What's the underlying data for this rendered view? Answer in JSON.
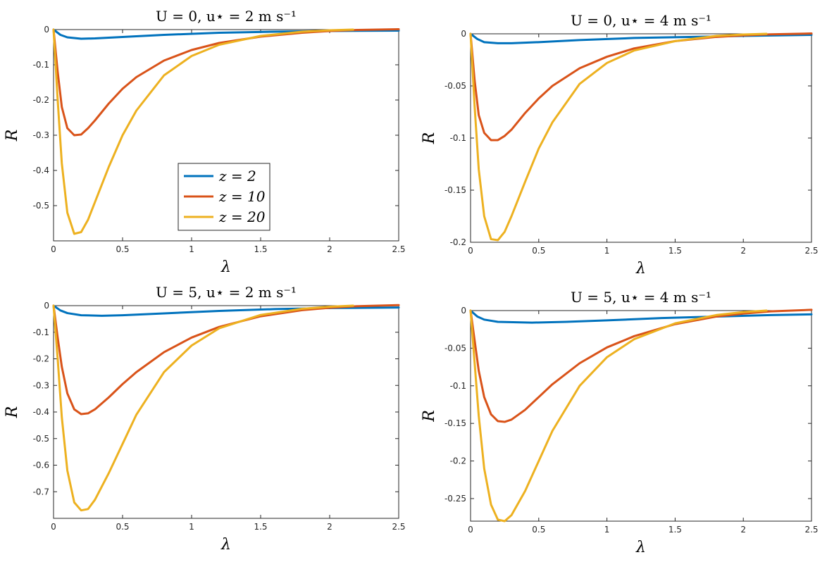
{
  "colors": {
    "z2": "#0072BD",
    "z10": "#D95319",
    "z20": "#EDB120",
    "axis": "#262626"
  },
  "chart_data": [
    {
      "type": "line",
      "title": "U = 0, u⋆ = 2 m s⁻¹",
      "xlabel": "λ",
      "ylabel": "R",
      "xlim": [
        0,
        2.5
      ],
      "ylim": [
        -0.6,
        0
      ],
      "xticks": [
        "0",
        "0.5",
        "1",
        "1.5",
        "2",
        "2.5"
      ],
      "yticks": [
        "0",
        "-0.1",
        "-0.2",
        "-0.3",
        "-0.4",
        "-0.5"
      ],
      "ytick_values": [
        0,
        -0.1,
        -0.2,
        -0.3,
        -0.4,
        -0.5
      ],
      "legend": "center-left",
      "series": [
        {
          "name": "z = 2",
          "x": [
            0,
            0.05,
            0.1,
            0.2,
            0.3,
            0.5,
            0.8,
            1.2,
            1.6,
            2.0,
            2.5
          ],
          "values": [
            0,
            -0.015,
            -0.022,
            -0.026,
            -0.025,
            -0.021,
            -0.015,
            -0.009,
            -0.006,
            -0.004,
            -0.003
          ]
        },
        {
          "name": "z = 10",
          "x": [
            0,
            0.03,
            0.06,
            0.1,
            0.15,
            0.2,
            0.25,
            0.3,
            0.4,
            0.5,
            0.6,
            0.8,
            1.0,
            1.2,
            1.5,
            1.8,
            2.0,
            2.2,
            2.5
          ],
          "values": [
            0,
            -0.12,
            -0.22,
            -0.28,
            -0.3,
            -0.298,
            -0.28,
            -0.258,
            -0.21,
            -0.168,
            -0.135,
            -0.088,
            -0.058,
            -0.038,
            -0.02,
            -0.009,
            -0.004,
            -0.001,
            0.001
          ]
        },
        {
          "name": "z = 20",
          "x": [
            0,
            0.03,
            0.06,
            0.1,
            0.15,
            0.2,
            0.25,
            0.3,
            0.4,
            0.5,
            0.6,
            0.8,
            1.0,
            1.2,
            1.5,
            1.8,
            2.0,
            2.17
          ],
          "values": [
            0,
            -0.2,
            -0.38,
            -0.52,
            -0.58,
            -0.575,
            -0.54,
            -0.49,
            -0.39,
            -0.3,
            -0.23,
            -0.13,
            -0.075,
            -0.043,
            -0.018,
            -0.006,
            -0.002,
            0
          ]
        }
      ]
    },
    {
      "type": "line",
      "title": "U = 0, u⋆ = 4 m s⁻¹",
      "xlabel": "λ",
      "ylabel": "R",
      "xlim": [
        0,
        2.5
      ],
      "ylim": [
        -0.2,
        0
      ],
      "xticks": [
        "0",
        "0.5",
        "1",
        "1.5",
        "2",
        "2.5"
      ],
      "yticks": [
        "0",
        "-0.05",
        "-0.1",
        "-0.15",
        "-0.2"
      ],
      "ytick_values": [
        0,
        -0.05,
        -0.1,
        -0.15,
        -0.2
      ],
      "series": [
        {
          "name": "z = 2",
          "x": [
            0,
            0.05,
            0.1,
            0.2,
            0.3,
            0.5,
            0.8,
            1.2,
            1.6,
            2.0,
            2.5
          ],
          "values": [
            0,
            -0.005,
            -0.008,
            -0.009,
            -0.009,
            -0.008,
            -0.006,
            -0.004,
            -0.003,
            -0.002,
            -0.001
          ]
        },
        {
          "name": "z = 10",
          "x": [
            0,
            0.03,
            0.06,
            0.1,
            0.15,
            0.2,
            0.25,
            0.3,
            0.4,
            0.5,
            0.6,
            0.8,
            1.0,
            1.2,
            1.5,
            1.8,
            2.0,
            2.2,
            2.5
          ],
          "values": [
            0,
            -0.045,
            -0.078,
            -0.095,
            -0.102,
            -0.102,
            -0.098,
            -0.092,
            -0.076,
            -0.062,
            -0.05,
            -0.033,
            -0.022,
            -0.014,
            -0.007,
            -0.003,
            -0.0015,
            -0.0005,
            0.0003
          ]
        },
        {
          "name": "z = 20",
          "x": [
            0,
            0.03,
            0.06,
            0.1,
            0.15,
            0.2,
            0.25,
            0.3,
            0.4,
            0.5,
            0.6,
            0.8,
            1.0,
            1.2,
            1.5,
            1.8,
            2.0,
            2.17
          ],
          "values": [
            0,
            -0.07,
            -0.13,
            -0.175,
            -0.197,
            -0.198,
            -0.19,
            -0.175,
            -0.142,
            -0.11,
            -0.085,
            -0.048,
            -0.028,
            -0.016,
            -0.007,
            -0.002,
            -0.0007,
            0
          ]
        }
      ]
    },
    {
      "type": "line",
      "title": "U = 5, u⋆ = 2 m s⁻¹",
      "xlabel": "λ",
      "ylabel": "R",
      "xlim": [
        0,
        2.5
      ],
      "ylim": [
        -0.8,
        0
      ],
      "xticks": [
        "0",
        "0.5",
        "1",
        "1.5",
        "2",
        "2.5"
      ],
      "yticks": [
        "0",
        "-0.1",
        "-0.2",
        "-0.3",
        "-0.4",
        "-0.5",
        "-0.6",
        "-0.7"
      ],
      "ytick_values": [
        0,
        -0.1,
        -0.2,
        -0.3,
        -0.4,
        -0.5,
        -0.6,
        -0.7
      ],
      "series": [
        {
          "name": "z = 2",
          "x": [
            0,
            0.05,
            0.1,
            0.2,
            0.35,
            0.5,
            0.8,
            1.2,
            1.6,
            2.0,
            2.5
          ],
          "values": [
            0,
            -0.018,
            -0.028,
            -0.036,
            -0.038,
            -0.036,
            -0.029,
            -0.02,
            -0.013,
            -0.009,
            -0.007
          ]
        },
        {
          "name": "z = 10",
          "x": [
            0,
            0.03,
            0.06,
            0.1,
            0.15,
            0.2,
            0.25,
            0.3,
            0.4,
            0.5,
            0.6,
            0.8,
            1.0,
            1.2,
            1.5,
            1.8,
            2.0,
            2.2,
            2.5
          ],
          "values": [
            0,
            -0.12,
            -0.23,
            -0.33,
            -0.39,
            -0.408,
            -0.405,
            -0.39,
            -0.345,
            -0.295,
            -0.25,
            -0.175,
            -0.12,
            -0.08,
            -0.04,
            -0.017,
            -0.008,
            -0.002,
            0.002
          ]
        },
        {
          "name": "z = 20",
          "x": [
            0,
            0.03,
            0.06,
            0.1,
            0.15,
            0.2,
            0.25,
            0.3,
            0.4,
            0.5,
            0.6,
            0.8,
            1.0,
            1.2,
            1.5,
            1.8,
            2.0,
            2.17
          ],
          "values": [
            0,
            -0.2,
            -0.42,
            -0.62,
            -0.74,
            -0.77,
            -0.765,
            -0.73,
            -0.63,
            -0.52,
            -0.41,
            -0.25,
            -0.15,
            -0.085,
            -0.035,
            -0.012,
            -0.004,
            0
          ]
        }
      ]
    },
    {
      "type": "line",
      "title": "U = 5, u⋆ = 4 m s⁻¹",
      "xlabel": "λ",
      "ylabel": "R",
      "xlim": [
        0,
        2.5
      ],
      "ylim": [
        -0.28,
        0
      ],
      "xticks": [
        "0",
        "0.5",
        "1",
        "1.5",
        "2",
        "2.5"
      ],
      "yticks": [
        "0",
        "-0.05",
        "-0.1",
        "-0.15",
        "-0.2",
        "-0.25"
      ],
      "ytick_values": [
        0,
        -0.05,
        -0.1,
        -0.15,
        -0.2,
        -0.25
      ],
      "series": [
        {
          "name": "z = 2",
          "x": [
            0,
            0.05,
            0.1,
            0.2,
            0.45,
            0.7,
            1.0,
            1.4,
            1.8,
            2.2,
            2.5
          ],
          "values": [
            0,
            -0.008,
            -0.012,
            -0.015,
            -0.016,
            -0.015,
            -0.013,
            -0.01,
            -0.008,
            -0.006,
            -0.005
          ]
        },
        {
          "name": "z = 10",
          "x": [
            0,
            0.03,
            0.06,
            0.1,
            0.15,
            0.2,
            0.25,
            0.3,
            0.4,
            0.5,
            0.6,
            0.8,
            1.0,
            1.2,
            1.5,
            1.8,
            2.0,
            2.2,
            2.5
          ],
          "values": [
            0,
            -0.04,
            -0.08,
            -0.115,
            -0.138,
            -0.147,
            -0.148,
            -0.145,
            -0.132,
            -0.115,
            -0.098,
            -0.07,
            -0.049,
            -0.034,
            -0.018,
            -0.008,
            -0.004,
            -0.001,
            0.001
          ]
        },
        {
          "name": "z = 20",
          "x": [
            0,
            0.03,
            0.06,
            0.1,
            0.15,
            0.2,
            0.25,
            0.3,
            0.4,
            0.5,
            0.6,
            0.8,
            1.0,
            1.2,
            1.5,
            1.8,
            2.0,
            2.17
          ],
          "values": [
            0,
            -0.07,
            -0.14,
            -0.21,
            -0.258,
            -0.278,
            -0.28,
            -0.272,
            -0.24,
            -0.2,
            -0.16,
            -0.1,
            -0.062,
            -0.038,
            -0.017,
            -0.006,
            -0.002,
            0
          ]
        }
      ]
    }
  ]
}
